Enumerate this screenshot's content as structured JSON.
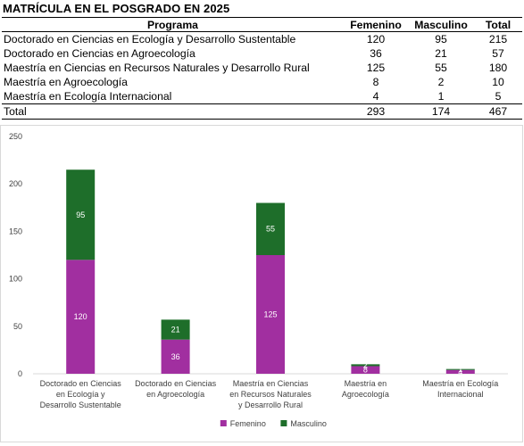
{
  "table": {
    "title": "MATRÍCULA EN EL POSGRADO EN 2025",
    "headers": [
      "Programa",
      "Femenino",
      "Masculino",
      "Total"
    ],
    "rows": [
      [
        "Doctorado en Ciencias en Ecología y Desarrollo Sustentable",
        "120",
        "95",
        "215"
      ],
      [
        "Doctorado en Ciencias en Agroecología",
        "36",
        "21",
        "57"
      ],
      [
        "Maestría en Ciencias en Recursos Naturales y Desarrollo Rural",
        "125",
        "55",
        "180"
      ],
      [
        "Maestría en Agroecología",
        "8",
        "2",
        "10"
      ],
      [
        "Maestría en Ecología Internacional",
        "4",
        "1",
        "5"
      ]
    ],
    "total": [
      "Total",
      "293",
      "174",
      "467"
    ]
  },
  "chart_data": {
    "type": "bar",
    "stacked": true,
    "categories": [
      "Doctorado en Ciencias en Ecología y Desarrollo Sustentable",
      "Doctorado en Ciencias en Agroecología",
      "Maestría en Ciencias en Recursos Naturales y Desarrollo Rural",
      "Maestría en Agroecología",
      "Maestría en Ecología Internacional"
    ],
    "category_label_lines": [
      [
        "Doctorado en Ciencias",
        "en Ecología y",
        "Desarrollo Sustentable"
      ],
      [
        "Doctorado en Ciencias",
        "en Agroecología"
      ],
      [
        "Maestría en Ciencias",
        "en Recursos Naturales",
        "y Desarrollo Rural"
      ],
      [
        "Maestría en",
        "Agroecología"
      ],
      [
        "Maestría en Ecología",
        "Internacional"
      ]
    ],
    "series": [
      {
        "name": "Femenino",
        "values": [
          120,
          36,
          125,
          8,
          4
        ],
        "color": "#a12fa0"
      },
      {
        "name": "Masculino",
        "values": [
          95,
          21,
          55,
          2,
          1
        ],
        "color": "#1e6e2a"
      }
    ],
    "data_labels": true,
    "ylim": [
      0,
      250
    ],
    "yticks": [
      0,
      50,
      100,
      150,
      200,
      250
    ],
    "grid": false,
    "legend": "bottom",
    "title": "",
    "xlabel": "",
    "ylabel": ""
  }
}
